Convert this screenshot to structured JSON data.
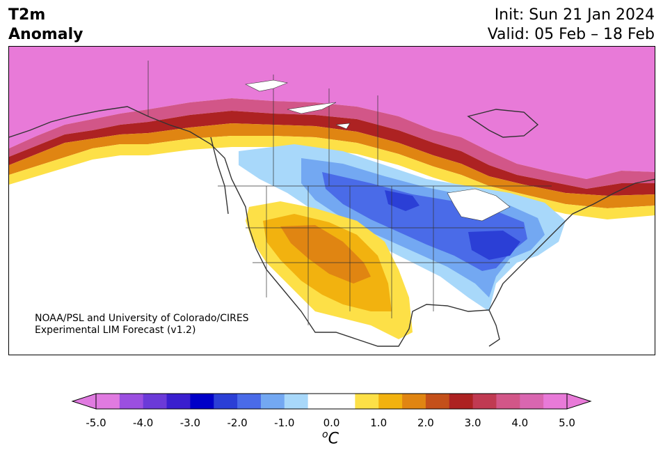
{
  "title": {
    "line1": "T2m",
    "line2": "Anomaly"
  },
  "dates": {
    "init": "Init: Sun 21 Jan 2024",
    "valid": "Valid: 05 Feb – 18 Feb"
  },
  "credit": {
    "line1": "NOAA/PSL and University of Colorado/CIRES",
    "line2": "Experimental LIM Forecast (v1.2)"
  },
  "colorbar": {
    "unit_base": "C",
    "unit_sup": "o",
    "ticks": [
      "-5.0",
      "-4.0",
      "-3.0",
      "-2.0",
      "-1.0",
      "0.0",
      "1.0",
      "2.0",
      "3.0",
      "4.0",
      "5.0"
    ],
    "colors": [
      "#e07ae0",
      "#9b4fe0",
      "#6b3ad8",
      "#3a1fcf",
      "#0000c8",
      "#2b3fd6",
      "#4a6be8",
      "#73a8f2",
      "#a8d8fa",
      "#ffffff",
      "#ffffff",
      "#fde047",
      "#f2b20f",
      "#e08512",
      "#c4501a",
      "#ad2222",
      "#c03a52",
      "#d25688",
      "#d966b0",
      "#e87ad8"
    ]
  }
}
